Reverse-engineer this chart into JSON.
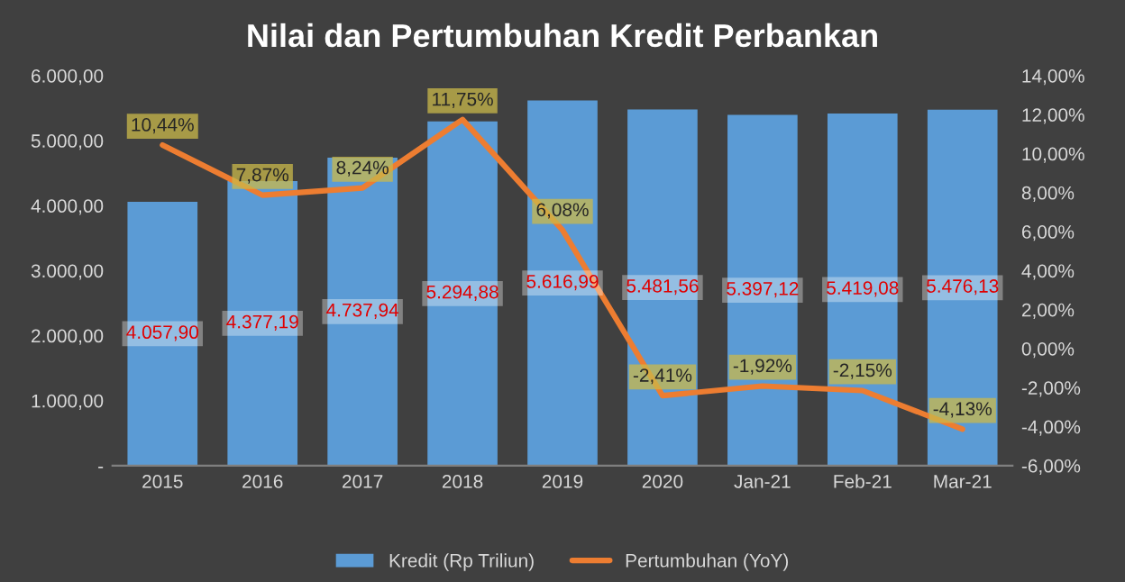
{
  "chart_data": {
    "type": "bar",
    "title": "Nilai dan Pertumbuhan Kredit Perbankan",
    "categories": [
      "2015",
      "2016",
      "2017",
      "2018",
      "2019",
      "2020",
      "Jan-21",
      "Feb-21",
      "Mar-21"
    ],
    "series": [
      {
        "name": "Kredit (Rp Triliun)",
        "color": "#5b9bd5",
        "values": [
          4057.9,
          4377.19,
          4737.94,
          5294.88,
          5616.99,
          5481.56,
          5397.12,
          5419.08,
          5476.13
        ],
        "value_labels": [
          "4.057,90",
          "4.377,19",
          "4.737,94",
          "5.294,88",
          "5.616,99",
          "5.481,56",
          "5.397,12",
          "5.419,08",
          "5.476,13"
        ]
      },
      {
        "name": "Pertumbuhan (YoY)",
        "type": "line",
        "axis": "y2",
        "color": "#ed7d31",
        "values": [
          10.44,
          7.87,
          8.24,
          11.75,
          6.08,
          -2.41,
          -1.92,
          -2.15,
          -4.13
        ],
        "value_labels": [
          "10,44%",
          "7,87%",
          "8,24%",
          "11,75%",
          "6,08%",
          "-2,41%",
          "-1,92%",
          "-2,15%",
          "-4,13%"
        ]
      }
    ],
    "ylim": [
      0,
      6000
    ],
    "yticks": [
      {
        "value": 0,
        "label": "-"
      },
      {
        "value": 1000,
        "label": "1.000,00"
      },
      {
        "value": 2000,
        "label": "2.000,00"
      },
      {
        "value": 3000,
        "label": "3.000,00"
      },
      {
        "value": 4000,
        "label": "4.000,00"
      },
      {
        "value": 5000,
        "label": "5.000,00"
      },
      {
        "value": 6000,
        "label": "6.000,00"
      }
    ],
    "y2lim": [
      -6,
      14
    ],
    "y2ticks": [
      {
        "value": -6,
        "label": "-6,00%"
      },
      {
        "value": -4,
        "label": "-4,00%"
      },
      {
        "value": -2,
        "label": "-2,00%"
      },
      {
        "value": 0,
        "label": "0,00%"
      },
      {
        "value": 2,
        "label": "2,00%"
      },
      {
        "value": 4,
        "label": "4,00%"
      },
      {
        "value": 6,
        "label": "6,00%"
      },
      {
        "value": 8,
        "label": "8,00%"
      },
      {
        "value": 10,
        "label": "10,00%"
      },
      {
        "value": 12,
        "label": "12,00%"
      },
      {
        "value": 14,
        "label": "14,00%"
      }
    ],
    "legend": "bottom",
    "grid": false,
    "line_style": "solid"
  }
}
